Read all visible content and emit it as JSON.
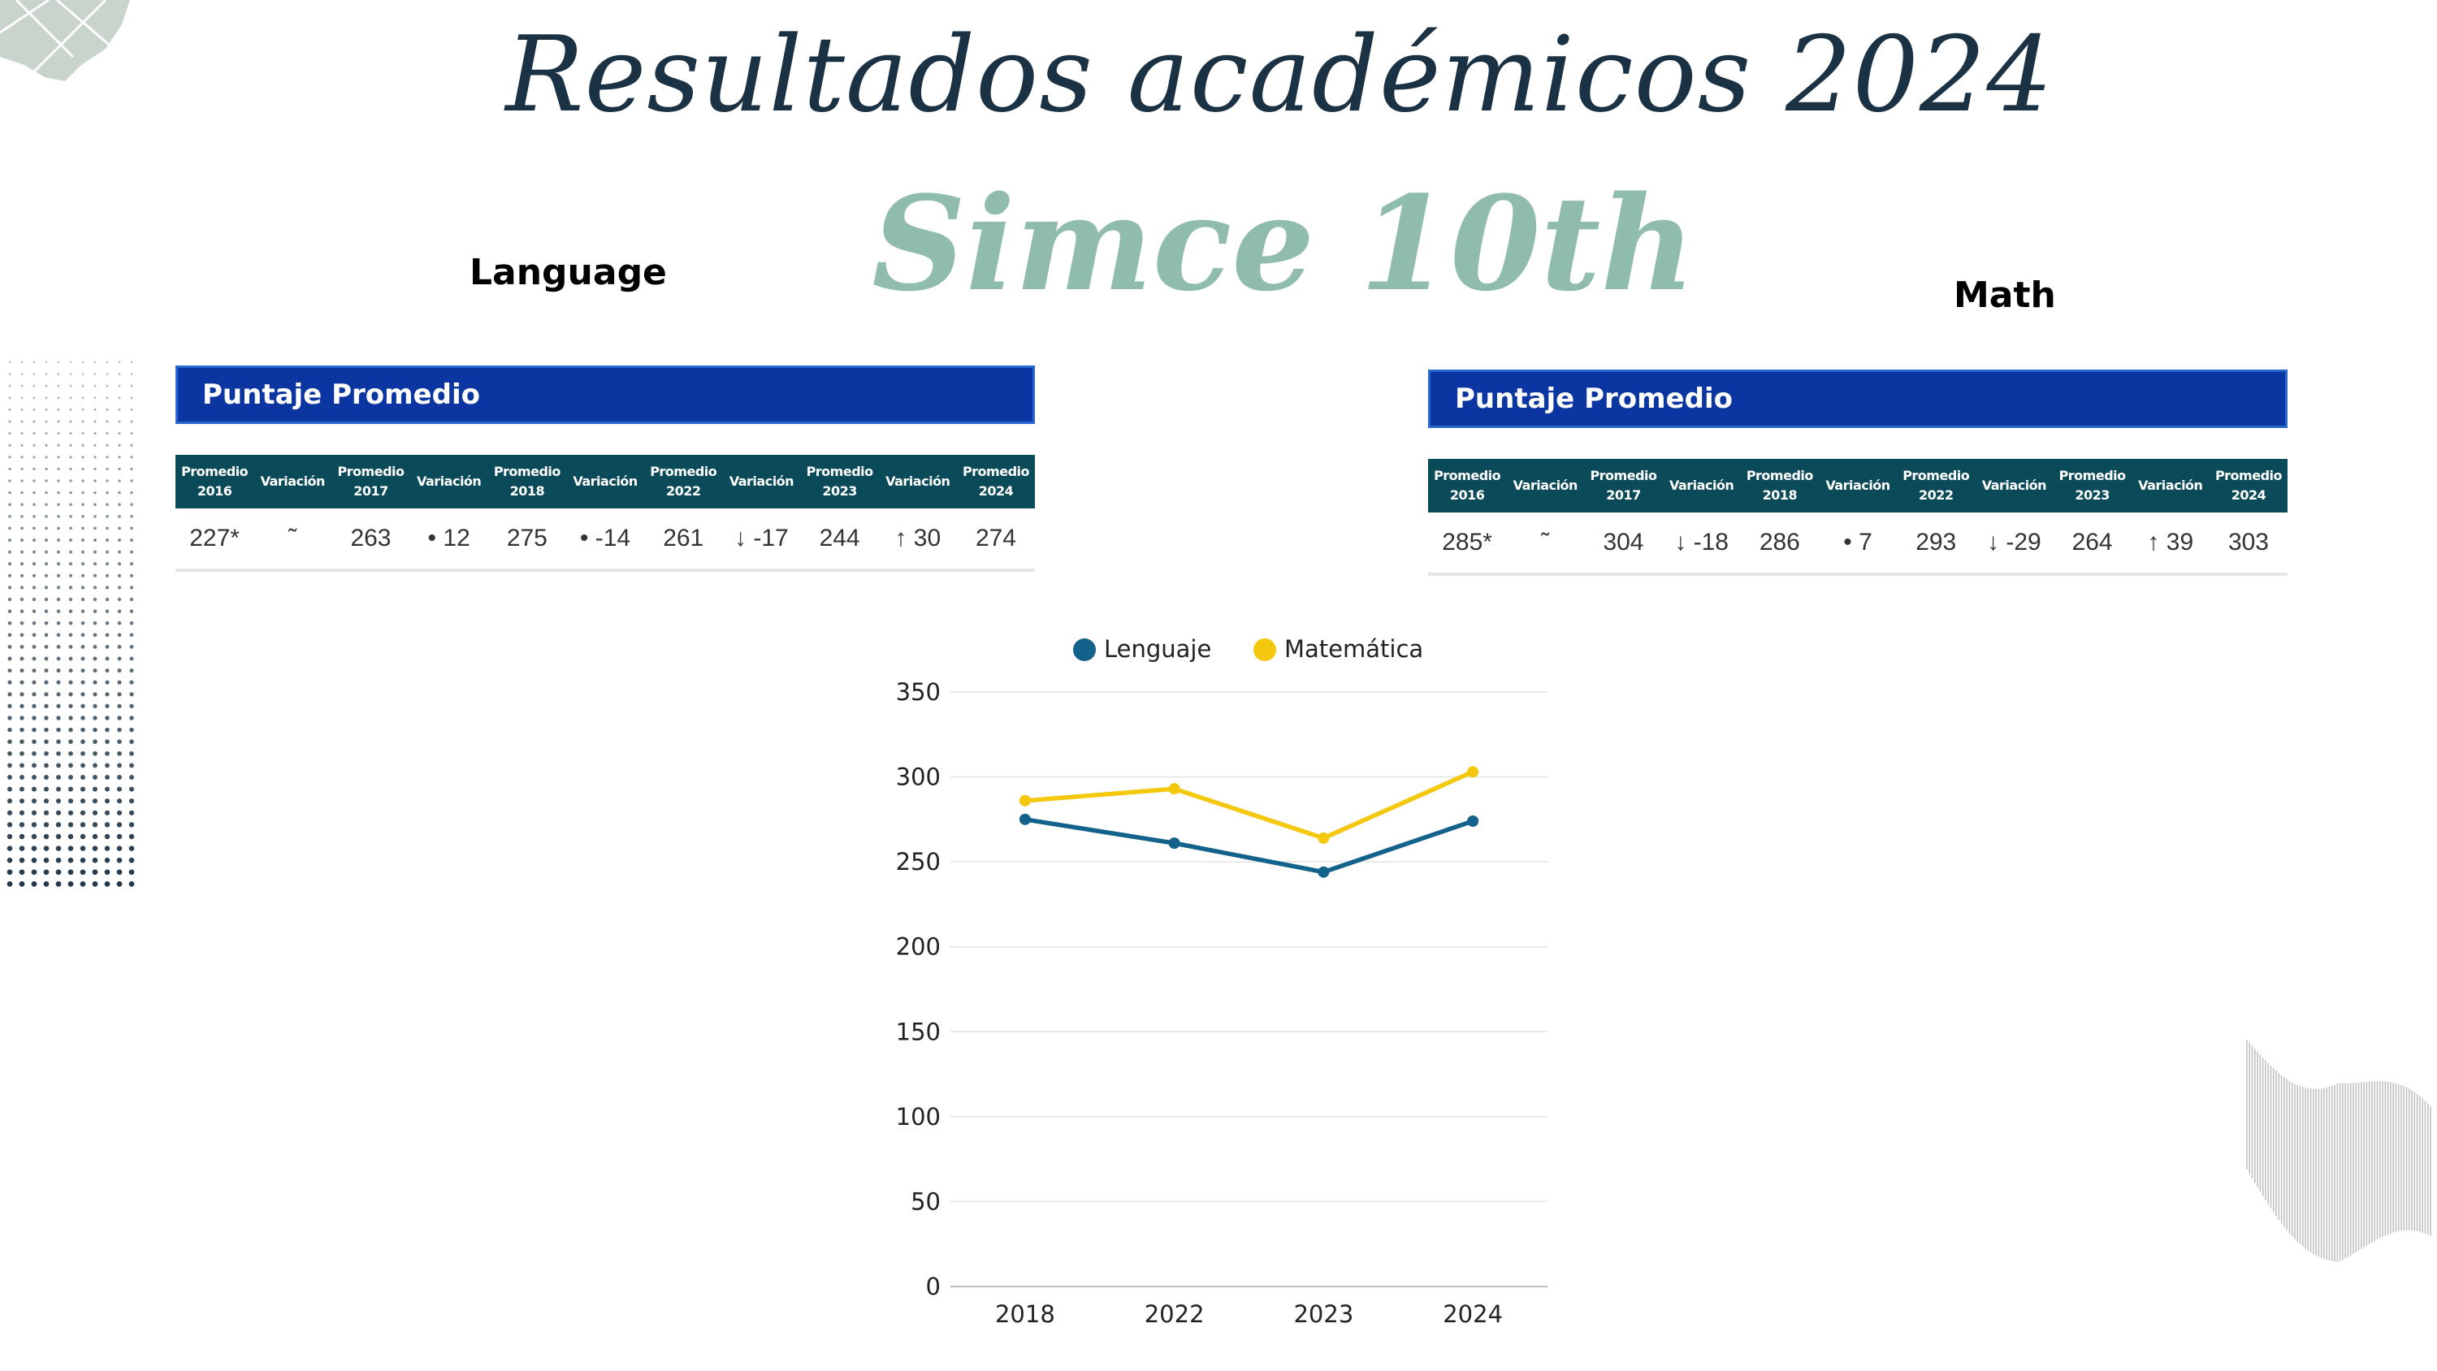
{
  "title": "Resultados académicos 2024",
  "subtitle": "Simce 10th",
  "language_label": "Language",
  "math_label": "Math",
  "tables": {
    "language": {
      "banner": "Puntaje Promedio",
      "headers": [
        "Promedio\n2016",
        "Variación",
        "Promedio\n2017",
        "Variación",
        "Promedio\n2018",
        "Variación",
        "Promedio\n2022",
        "Variación",
        "Promedio\n2023",
        "Variación",
        "Promedio\n2024"
      ],
      "values": [
        "227*",
        "˜",
        "263",
        "• 12",
        "275",
        "• -14",
        "261",
        "↓ -17",
        "244",
        "↑ 30",
        "274"
      ]
    },
    "math": {
      "banner": "Puntaje Promedio",
      "headers": [
        "Promedio\n2016",
        "Variación",
        "Promedio\n2017",
        "Variación",
        "Promedio\n2018",
        "Variación",
        "Promedio\n2022",
        "Variación",
        "Promedio\n2023",
        "Variación",
        "Promedio\n2024"
      ],
      "values": [
        "285*",
        "˜",
        "304",
        "↓ -18",
        "286",
        "• 7",
        "293",
        "↓ -29",
        "264",
        "↑ 39",
        "303"
      ]
    }
  },
  "chart_data": {
    "type": "line",
    "categories": [
      "2018",
      "2022",
      "2023",
      "2024"
    ],
    "series": [
      {
        "name": "Lenguaje",
        "values": [
          275,
          261,
          244,
          274
        ],
        "color": "#12628c"
      },
      {
        "name": "Matemática",
        "values": [
          286,
          293,
          264,
          303
        ],
        "color": "#f4c80c"
      }
    ],
    "ylim": [
      0,
      350
    ],
    "yticks": [
      0,
      50,
      100,
      150,
      200,
      250,
      300,
      350
    ],
    "grid": true,
    "legend": "top-center",
    "title": "",
    "xlabel": "",
    "ylabel": ""
  }
}
